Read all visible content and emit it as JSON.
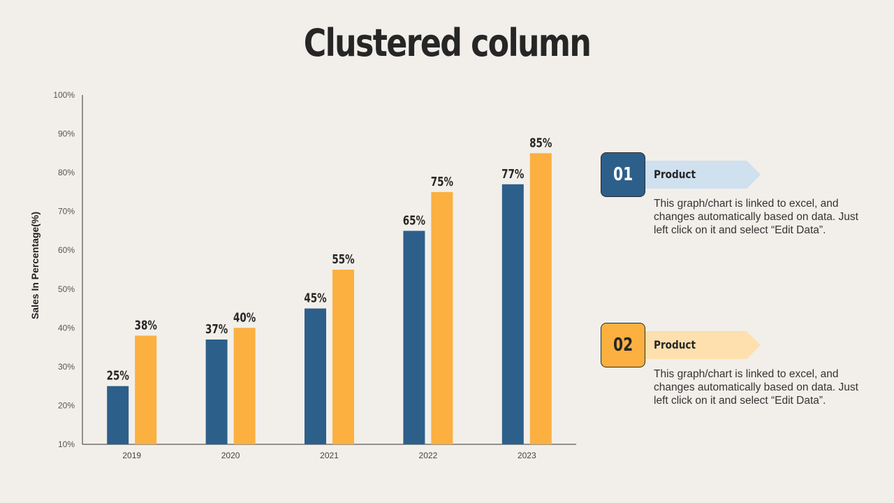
{
  "slide": {
    "title": "Clustered column"
  },
  "chart_data": {
    "type": "bar",
    "categories": [
      "2019",
      "2020",
      "2021",
      "2022",
      "2023"
    ],
    "series": [
      {
        "values": [
          25,
          37,
          45,
          65,
          77
        ],
        "color": "#2d5f8b",
        "labels": [
          "25%",
          "37%",
          "45%",
          "65%",
          "77%"
        ]
      },
      {
        "values": [
          38,
          40,
          55,
          75,
          85
        ],
        "color": "#fbb040",
        "labels": [
          "38%",
          "40%",
          "55%",
          "75%",
          "85%"
        ]
      }
    ],
    "ylabel": "Sales In Percentage(%)",
    "ylim": [
      10,
      100
    ],
    "yticks": [
      "10%",
      "20%",
      "30%",
      "40%",
      "50%",
      "60%",
      "70%",
      "80%",
      "90%",
      "100%"
    ],
    "grid": false
  },
  "legend": [
    {
      "number": "01",
      "label": "Product",
      "description": "This graph/chart is linked to excel, and changes automatically based on data. Just left click on it and select “Edit Data”."
    },
    {
      "number": "02",
      "label": "Product",
      "description": "This graph/chart is linked to excel, and changes automatically based on data. Just left click on it and select “Edit Data”."
    }
  ]
}
